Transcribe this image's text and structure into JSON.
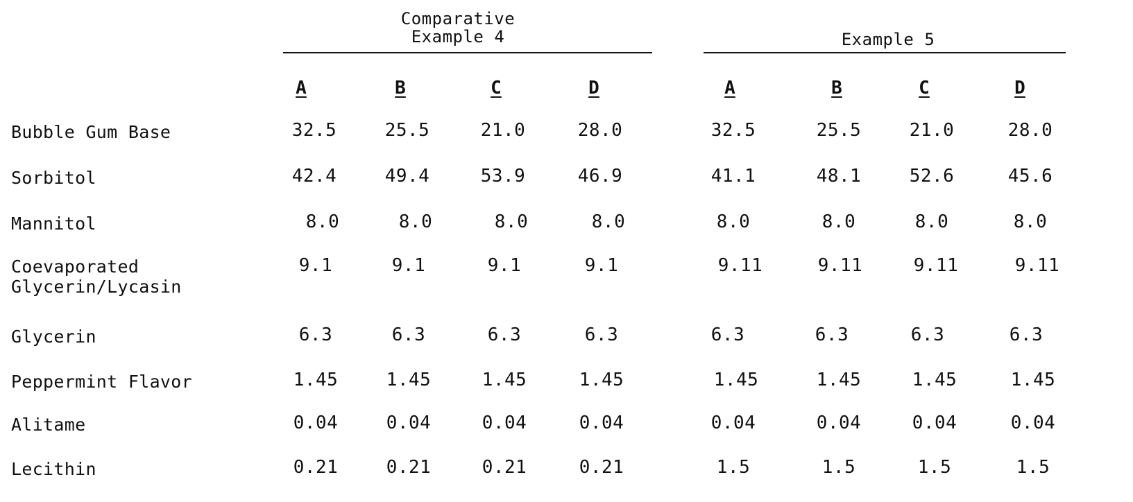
{
  "groups": [
    {
      "title": "Comparative\nExample 4",
      "columns": [
        "A",
        "B",
        "C",
        "D"
      ]
    },
    {
      "title": "Example 5",
      "columns": [
        "A",
        "B",
        "C",
        "D"
      ]
    }
  ],
  "rows": [
    {
      "label": "Bubble Gum Base",
      "values": [
        "32.5",
        "25.5",
        "21.0",
        "28.0",
        "32.5",
        "25.5",
        "21.0",
        "28.0"
      ]
    },
    {
      "label": "Sorbitol",
      "values": [
        "42.4",
        "49.4",
        "53.9",
        "46.9",
        "41.1",
        "48.1",
        "52.6",
        "45.6"
      ]
    },
    {
      "label": "Mannitol",
      "values": [
        "8.0",
        "8.0",
        "8.0",
        "8.0",
        "8.0",
        "8.0",
        "8.0",
        "8.0"
      ]
    },
    {
      "label": "Coevaporated\nGlycerin/Lycasin",
      "values": [
        "9.1",
        "9.1",
        "9.1",
        "9.1",
        "9.11",
        "9.11",
        "9.11",
        "9.11"
      ]
    },
    {
      "label": "Glycerin",
      "values": [
        "6.3",
        "6.3",
        "6.3",
        "6.3",
        "6.3",
        "6.3",
        "6.3",
        "6.3"
      ]
    },
    {
      "label": "Peppermint Flavor",
      "values": [
        "1.45",
        "1.45",
        "1.45",
        "1.45",
        "1.45",
        "1.45",
        "1.45",
        "1.45"
      ]
    },
    {
      "label": "Alitame",
      "values": [
        "0.04",
        "0.04",
        "0.04",
        "0.04",
        "0.04",
        "0.04",
        "0.04",
        "0.04"
      ]
    },
    {
      "label": "Lecithin",
      "values": [
        "0.21",
        "0.21",
        "0.21",
        "0.21",
        "1.5",
        "1.5",
        "1.5",
        "1.5"
      ]
    }
  ]
}
